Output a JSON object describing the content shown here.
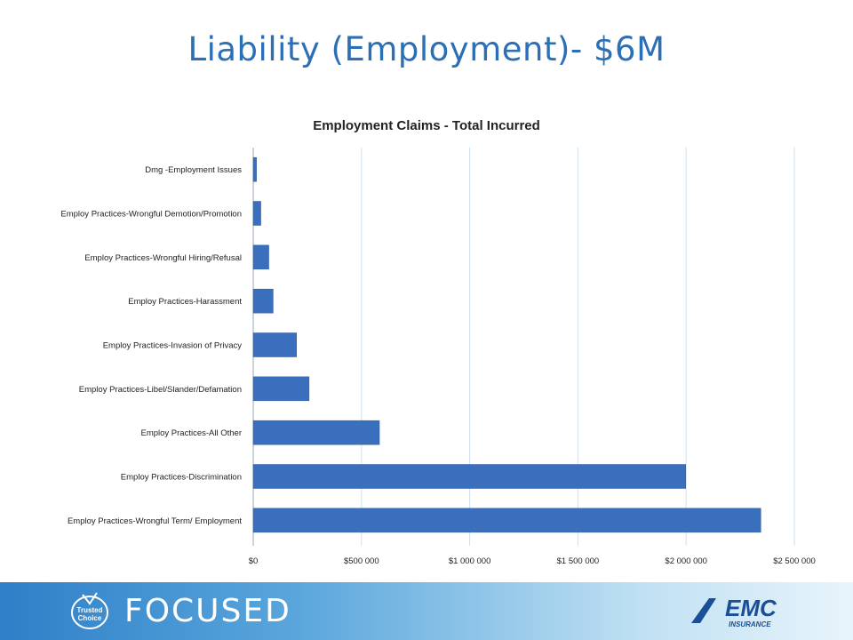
{
  "slide": {
    "title": "Liability (Employment)- $6M",
    "footer_text": "FOCUSED",
    "badge_text_1": "Trusted",
    "badge_text_2": "Choice",
    "emc_text": "EMC",
    "emc_sub": "INSURANCE"
  },
  "chart_data": {
    "type": "bar",
    "orientation": "horizontal",
    "title": "Employment Claims - Total Incurred",
    "categories": [
      "Dmg -Employment Issues",
      "Employ Practices-Wrongful Demotion/Promotion",
      "Employ Practices-Wrongful Hiring/Refusal",
      "Employ Practices-Harassment",
      "Employ Practices-Invasion of Privacy",
      "Employ Practices-Libel/Slander/Defamation",
      "Employ Practices-All Other",
      "Employ Practices-Discrimination",
      "Employ Practices-Wrongful Term/ Employment"
    ],
    "values": [
      15000,
      35000,
      72000,
      92000,
      200000,
      258000,
      583000,
      1998000,
      2345000
    ],
    "xlim": [
      0,
      2500000
    ],
    "x_ticks": [
      0,
      500000,
      1000000,
      1500000,
      2000000,
      2500000
    ],
    "x_tick_labels": [
      "$0",
      "$500 000",
      "$1 000 000",
      "$1 500 000",
      "$2 000 000",
      "$2 500 000"
    ],
    "grid": true,
    "colors": {
      "bar": "#3a6fbd",
      "bar_edge": "#2c5aa0",
      "grid": "#cfe0ef",
      "title": "#2b6fb6"
    }
  }
}
